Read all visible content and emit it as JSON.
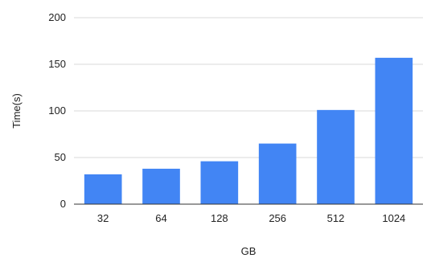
{
  "chart_data": {
    "type": "bar",
    "categories": [
      "32",
      "64",
      "128",
      "256",
      "512",
      "1024"
    ],
    "values": [
      32,
      38,
      46,
      65,
      101,
      157
    ],
    "xlabel": "GB",
    "ylabel": "Time(s)",
    "ylim": [
      0,
      200
    ],
    "yticks": [
      "0",
      "50",
      "100",
      "150",
      "200"
    ],
    "grid": true,
    "legend": "none",
    "bar_color": "#4285f4"
  }
}
